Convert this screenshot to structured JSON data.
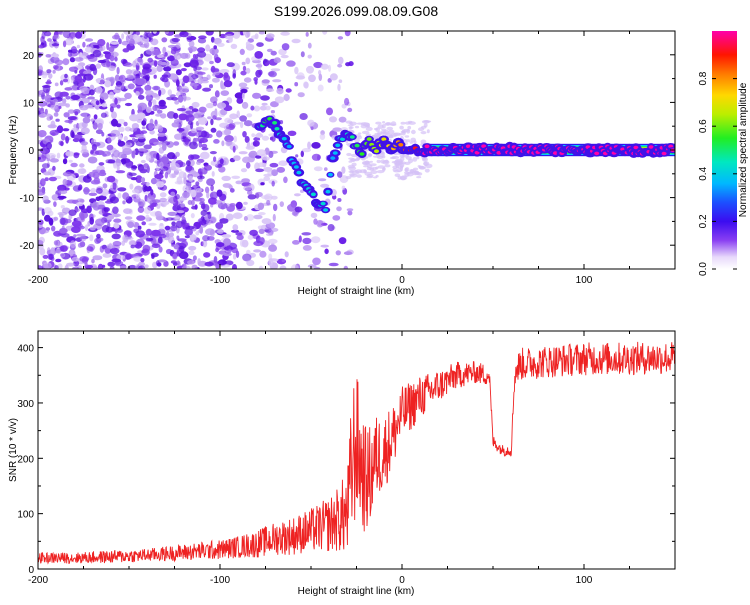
{
  "title": "S199.2026.099.08.09.G08",
  "colors": {
    "spectral_points": "#7b2cf0",
    "snr_line": "#ee2222",
    "axis": "#000000"
  },
  "chart_data": [
    {
      "type": "heatmap",
      "xlabel": "Height of straight line (km)",
      "ylabel": "Frequency (Hz)",
      "xlim": [
        -200,
        150
      ],
      "ylim": [
        -25,
        25
      ],
      "x_ticks": [
        "-200",
        "-100",
        "0",
        "100"
      ],
      "x_tick_values": [
        -200,
        -100,
        0,
        100
      ],
      "y_ticks": [
        "-20",
        "-10",
        "0",
        "10",
        "20"
      ],
      "y_tick_values": [
        -20,
        -10,
        0,
        10,
        20
      ],
      "colorbar": {
        "label": "Normalized spectral amplitude",
        "range": [
          0,
          1
        ],
        "ticks": [
          "0.0",
          "0.2",
          "0.4",
          "0.6",
          "0.8"
        ],
        "tick_values": [
          0,
          0.2,
          0.4,
          0.6,
          0.8
        ]
      },
      "ridge": {
        "x": [
          -78,
          -74,
          -70,
          -66,
          -62,
          -58,
          -54,
          -50,
          -46,
          -42,
          -38,
          -34,
          -30,
          -26,
          -22,
          -18,
          -14,
          -10,
          -6,
          -2,
          2,
          6,
          10,
          15,
          150
        ],
        "y": [
          5.5,
          6.5,
          5.5,
          3,
          0,
          -4,
          -7.5,
          -9,
          -11,
          -12,
          -2,
          2,
          3,
          1.5,
          -0.5,
          1.5,
          0.5,
          2,
          0.5,
          1,
          0,
          0.5,
          0,
          0,
          0
        ],
        "amplitude": [
          0.35,
          0.45,
          0.4,
          0.3,
          0.25,
          0.28,
          0.3,
          0.32,
          0.35,
          0.3,
          0.25,
          0.3,
          0.35,
          0.4,
          0.45,
          0.5,
          0.55,
          0.6,
          0.65,
          0.7,
          0.75,
          0.8,
          0.85,
          0.95,
          1.0
        ]
      }
    },
    {
      "type": "line",
      "xlabel": "Height of straight line (km)",
      "ylabel": "SNR (10 * v/v)",
      "xlim": [
        -200,
        150
      ],
      "ylim": [
        0,
        430
      ],
      "x_ticks": [
        "-200",
        "-100",
        "0",
        "100"
      ],
      "x_tick_values": [
        -200,
        -100,
        0,
        100
      ],
      "y_ticks": [
        "0",
        "100",
        "200",
        "300",
        "400"
      ],
      "y_tick_values": [
        0,
        100,
        200,
        300,
        400
      ],
      "series": [
        {
          "name": "SNR",
          "x": [
            -200,
            -180,
            -160,
            -140,
            -120,
            -100,
            -90,
            -80,
            -70,
            -60,
            -50,
            -40,
            -35,
            -30,
            -27,
            -25,
            -22,
            -20,
            -17,
            -15,
            -10,
            -5,
            0,
            10,
            20,
            30,
            40,
            48,
            50,
            55,
            60,
            62,
            65,
            80,
            100,
            120,
            150
          ],
          "values": [
            20,
            20,
            22,
            25,
            30,
            35,
            40,
            45,
            55,
            60,
            70,
            80,
            90,
            100,
            200,
            230,
            180,
            160,
            170,
            200,
            210,
            240,
            280,
            310,
            330,
            350,
            355,
            350,
            230,
            215,
            215,
            355,
            370,
            375,
            380,
            380,
            382
          ],
          "noise": [
            10,
            10,
            12,
            12,
            15,
            18,
            20,
            25,
            30,
            35,
            40,
            50,
            60,
            80,
            150,
            130,
            110,
            100,
            90,
            80,
            70,
            60,
            50,
            40,
            30,
            25,
            20,
            20,
            12,
            10,
            12,
            25,
            30,
            30,
            30,
            30,
            30
          ]
        }
      ]
    }
  ]
}
